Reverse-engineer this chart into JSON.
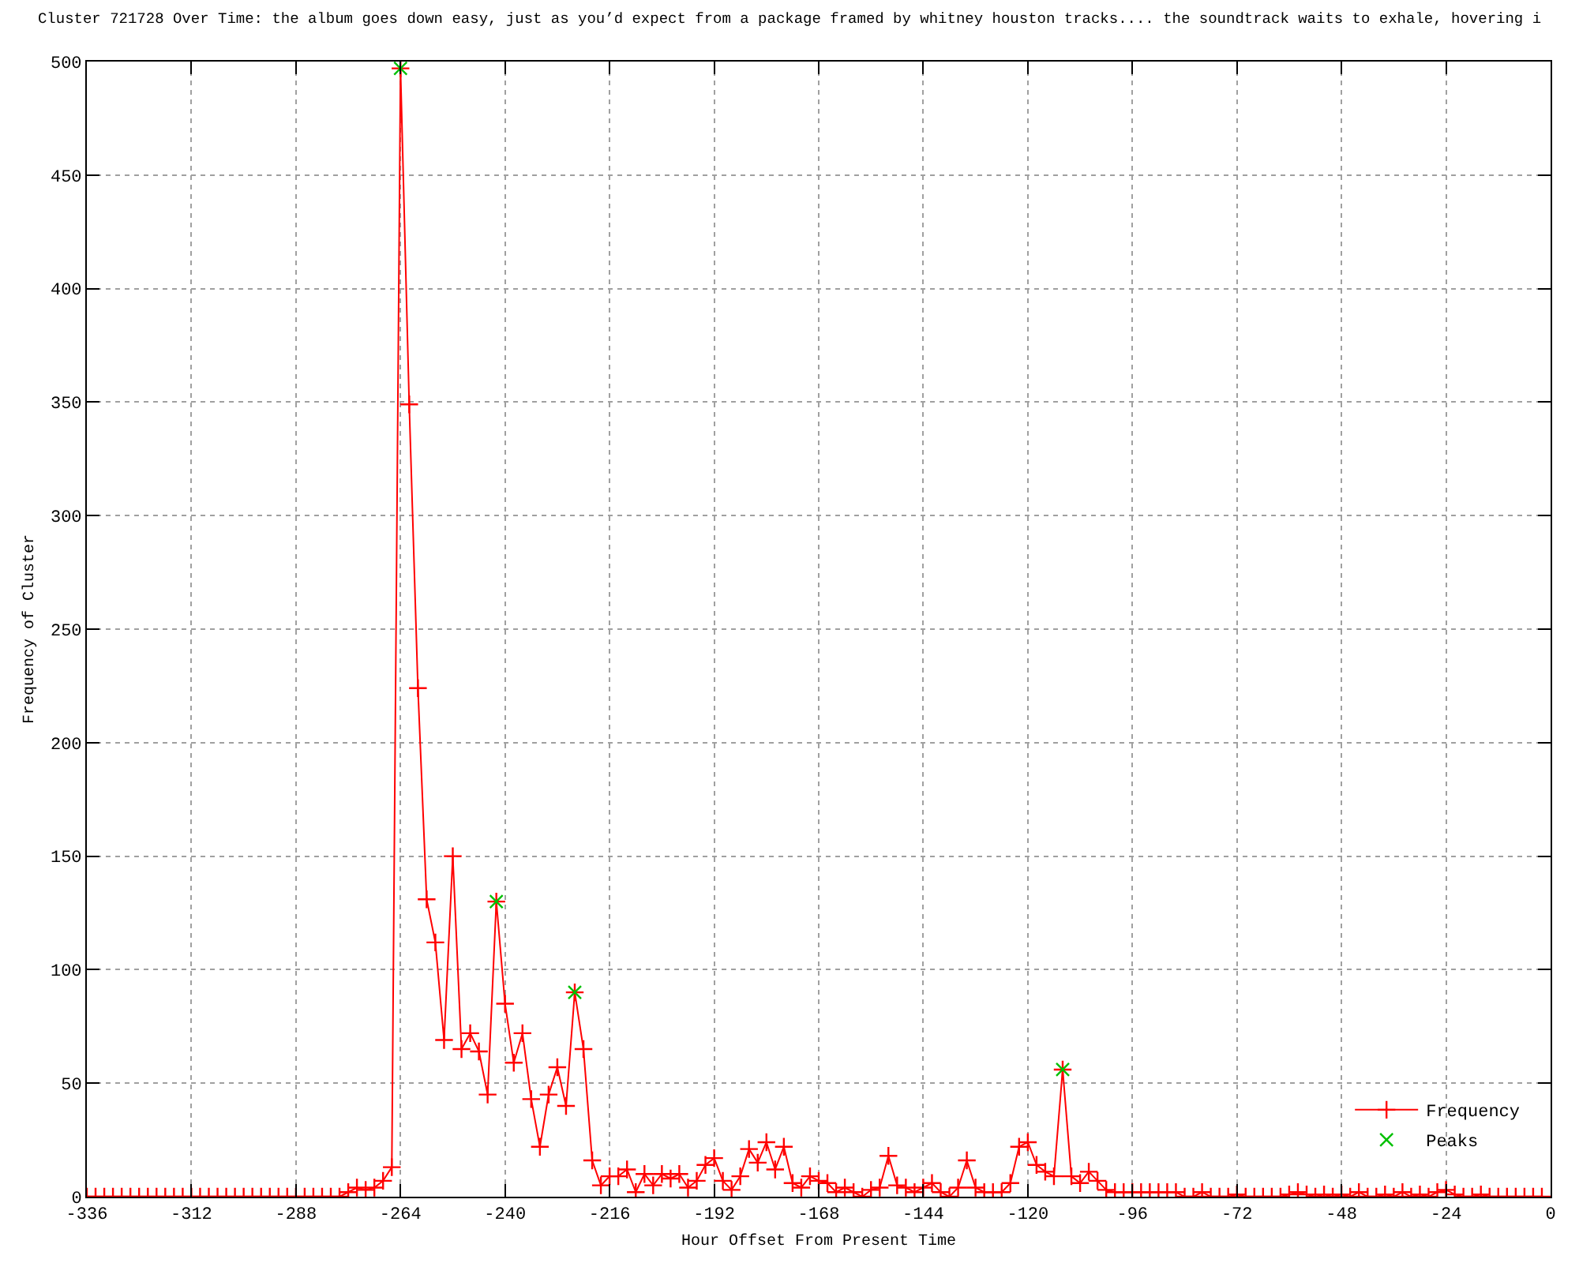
{
  "chart_data": {
    "type": "line",
    "title": "Cluster 721728 Over Time: the album goes down easy, just as you’d expect from a package framed by whitney houston tracks.... the soundtrack waits to exhale, hovering i",
    "xlabel": "Hour Offset From Present Time",
    "ylabel": "Frequency of Cluster",
    "xlim": [
      -336,
      0
    ],
    "xticks": [
      -336,
      -312,
      -288,
      -264,
      -240,
      -216,
      -192,
      -168,
      -144,
      -120,
      -96,
      -72,
      -48,
      -24,
      0
    ],
    "ylim": [
      0,
      500
    ],
    "yticks": [
      0,
      50,
      100,
      150,
      200,
      250,
      300,
      350,
      400,
      450,
      500
    ],
    "grid": true,
    "legend": "bottom right",
    "series": [
      {
        "name": "Frequency",
        "marker": "cross",
        "color": "#ff0000",
        "x": [
          -336,
          -334,
          -332,
          -330,
          -328,
          -326,
          -324,
          -322,
          -320,
          -318,
          -316,
          -314,
          -312,
          -310,
          -308,
          -306,
          -304,
          -302,
          -300,
          -298,
          -296,
          -294,
          -292,
          -290,
          -288,
          -286,
          -284,
          -282,
          -280,
          -278,
          -276,
          -274,
          -272,
          -270,
          -268,
          -266,
          -264,
          -262,
          -260,
          -258,
          -256,
          -254,
          -252,
          -250,
          -248,
          -246,
          -244,
          -242,
          -240,
          -238,
          -236,
          -234,
          -232,
          -230,
          -228,
          -226,
          -224,
          -222,
          -220,
          -218,
          -216,
          -214,
          -212,
          -210,
          -208,
          -206,
          -204,
          -202,
          -200,
          -198,
          -196,
          -194,
          -192,
          -190,
          -188,
          -186,
          -184,
          -182,
          -180,
          -178,
          -176,
          -174,
          -172,
          -170,
          -168,
          -166,
          -164,
          -162,
          -160,
          -158,
          -156,
          -154,
          -152,
          -150,
          -148,
          -146,
          -144,
          -142,
          -140,
          -138,
          -136,
          -134,
          -132,
          -130,
          -128,
          -126,
          -124,
          -122,
          -120,
          -118,
          -116,
          -114,
          -112,
          -110,
          -108,
          -106,
          -104,
          -102,
          -100,
          -98,
          -96,
          -94,
          -92,
          -90,
          -88,
          -86,
          -84,
          -82,
          -80,
          -78,
          -76,
          -74,
          -72,
          -70,
          -68,
          -66,
          -64,
          -62,
          -60,
          -58,
          -56,
          -54,
          -52,
          -50,
          -48,
          -46,
          -44,
          -42,
          -40,
          -38,
          -36,
          -34,
          -32,
          -30,
          -28,
          -26,
          -24,
          -22,
          -20,
          -18,
          -16,
          -14,
          -12,
          -10,
          -8,
          -6,
          -4,
          -2
        ],
        "values": [
          0,
          0,
          0,
          0,
          0,
          0,
          0,
          0,
          0,
          0,
          0,
          0,
          0,
          0,
          0,
          0,
          0,
          0,
          0,
          0,
          0,
          0,
          0,
          0,
          0,
          0,
          0,
          0,
          0,
          0,
          2,
          4,
          3,
          4,
          7,
          13,
          497,
          349,
          224,
          131,
          112,
          69,
          150,
          65,
          72,
          64,
          45,
          130,
          85,
          59,
          72,
          43,
          22,
          45,
          57,
          40,
          90,
          65,
          16,
          5,
          9,
          9,
          12,
          2,
          10,
          5,
          10,
          8,
          10,
          4,
          7,
          14,
          17,
          7,
          3,
          9,
          21,
          15,
          24,
          12,
          22,
          6,
          4,
          9,
          7,
          6,
          2,
          4,
          2,
          0,
          3,
          4,
          18,
          5,
          4,
          2,
          4,
          6,
          2,
          0,
          4,
          16,
          4,
          2,
          2,
          2,
          6,
          22,
          24,
          14,
          11,
          9,
          56,
          9,
          6,
          11,
          7,
          3,
          2,
          2,
          2,
          2,
          2,
          2,
          2,
          2,
          0,
          0,
          2,
          0,
          0,
          0,
          1,
          0,
          0,
          0,
          0,
          0,
          1,
          2,
          1,
          0,
          1,
          0,
          1,
          0,
          2,
          0,
          0,
          1,
          0,
          2,
          0,
          1,
          0,
          2,
          3,
          1,
          0,
          0,
          1,
          0,
          0,
          0,
          0,
          0,
          0,
          0
        ]
      },
      {
        "name": "Peaks",
        "type": "scatter",
        "marker": "x",
        "color": "#00c000",
        "x": [
          -264,
          -242,
          -224,
          -112
        ],
        "values": [
          497,
          130,
          90,
          56
        ]
      }
    ]
  }
}
